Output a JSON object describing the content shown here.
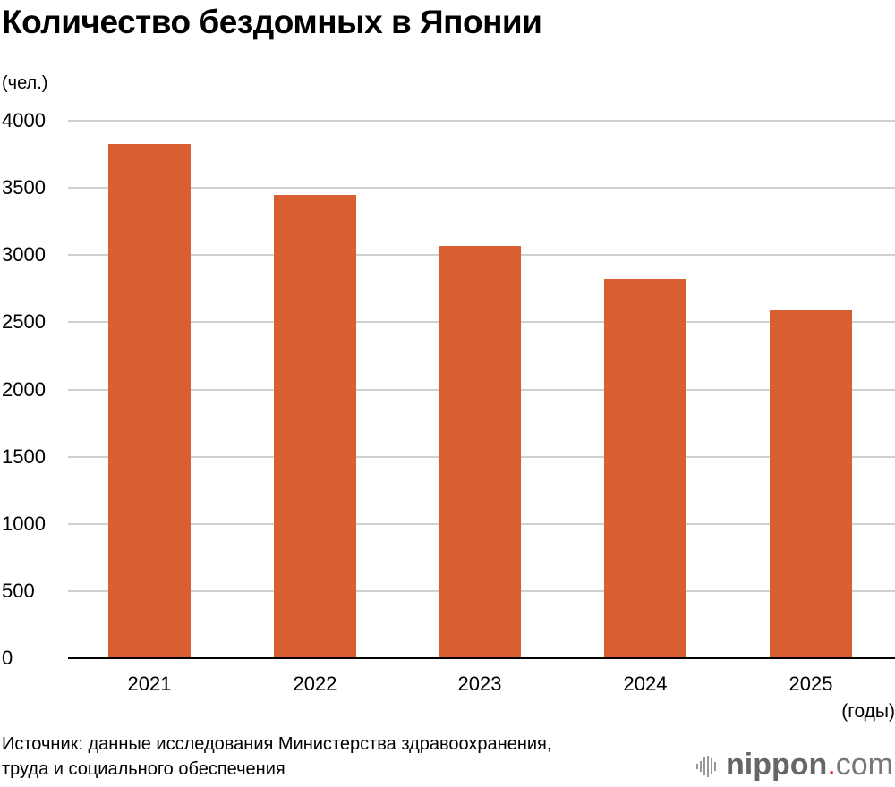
{
  "title": "Количество бездомных в Японии",
  "y_unit": "(чел.)",
  "x_unit": "(годы)",
  "source": [
    "Источник: данные исследования Министерства здравоохранения,",
    "труда и социального обеспечения"
  ],
  "logo": {
    "name": "nippon",
    "dot": ".",
    "tld": "com"
  },
  "colors": {
    "bar": "#d95f32",
    "grid": "#d0d0d0"
  },
  "y_ticks": [
    "4000",
    "3500",
    "3000",
    "2500",
    "2000",
    "1500",
    "1000",
    "500",
    "0"
  ],
  "chart_data": {
    "type": "bar",
    "title": "Количество бездомных в Японии",
    "xlabel": "(годы)",
    "ylabel": "(чел.)",
    "categories": [
      "2021",
      "2022",
      "2023",
      "2024",
      "2025"
    ],
    "values": [
      3824,
      3448,
      3065,
      2820,
      2591
    ],
    "ylim": [
      0,
      4000
    ],
    "yticks": [
      0,
      500,
      1000,
      1500,
      2000,
      2500,
      3000,
      3500,
      4000
    ],
    "grid": true,
    "legend": null
  }
}
